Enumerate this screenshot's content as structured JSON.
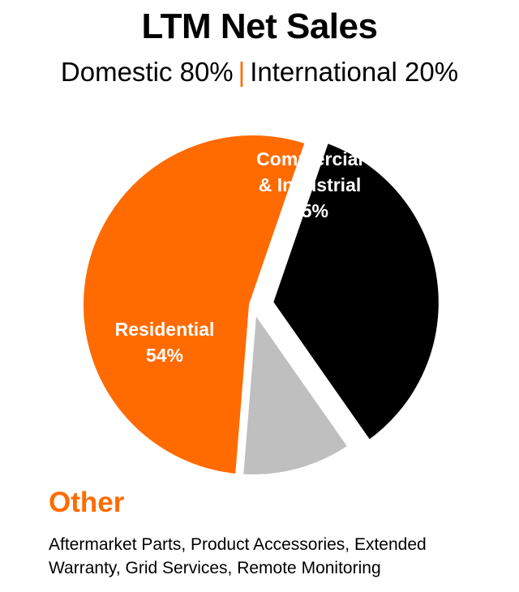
{
  "header": {
    "title": "LTM Net Sales",
    "domestic": "Domestic 80%",
    "separator": "|",
    "international": "International 20%"
  },
  "chart_data": {
    "type": "pie",
    "title": "LTM Net Sales",
    "slices": [
      {
        "label": [
          "Commercial",
          "& Industrial",
          "35%"
        ],
        "value": 35,
        "color": "#000000",
        "text_color": "#FFFFFF",
        "exploded": true
      },
      {
        "label": [
          "Other",
          "11%"
        ],
        "value": 11,
        "color": "#BFBFBF",
        "text_color": "#000000",
        "exploded": false
      },
      {
        "label": [
          "Residential",
          "54%"
        ],
        "value": 54,
        "color": "#FF6B00",
        "text_color": "#FFFFFF",
        "exploded": false
      }
    ]
  },
  "other_section": {
    "heading": "Other",
    "description": "Aftermarket Parts, Product Accessories, Extended Warranty, Grid Services, Remote Monitoring"
  }
}
